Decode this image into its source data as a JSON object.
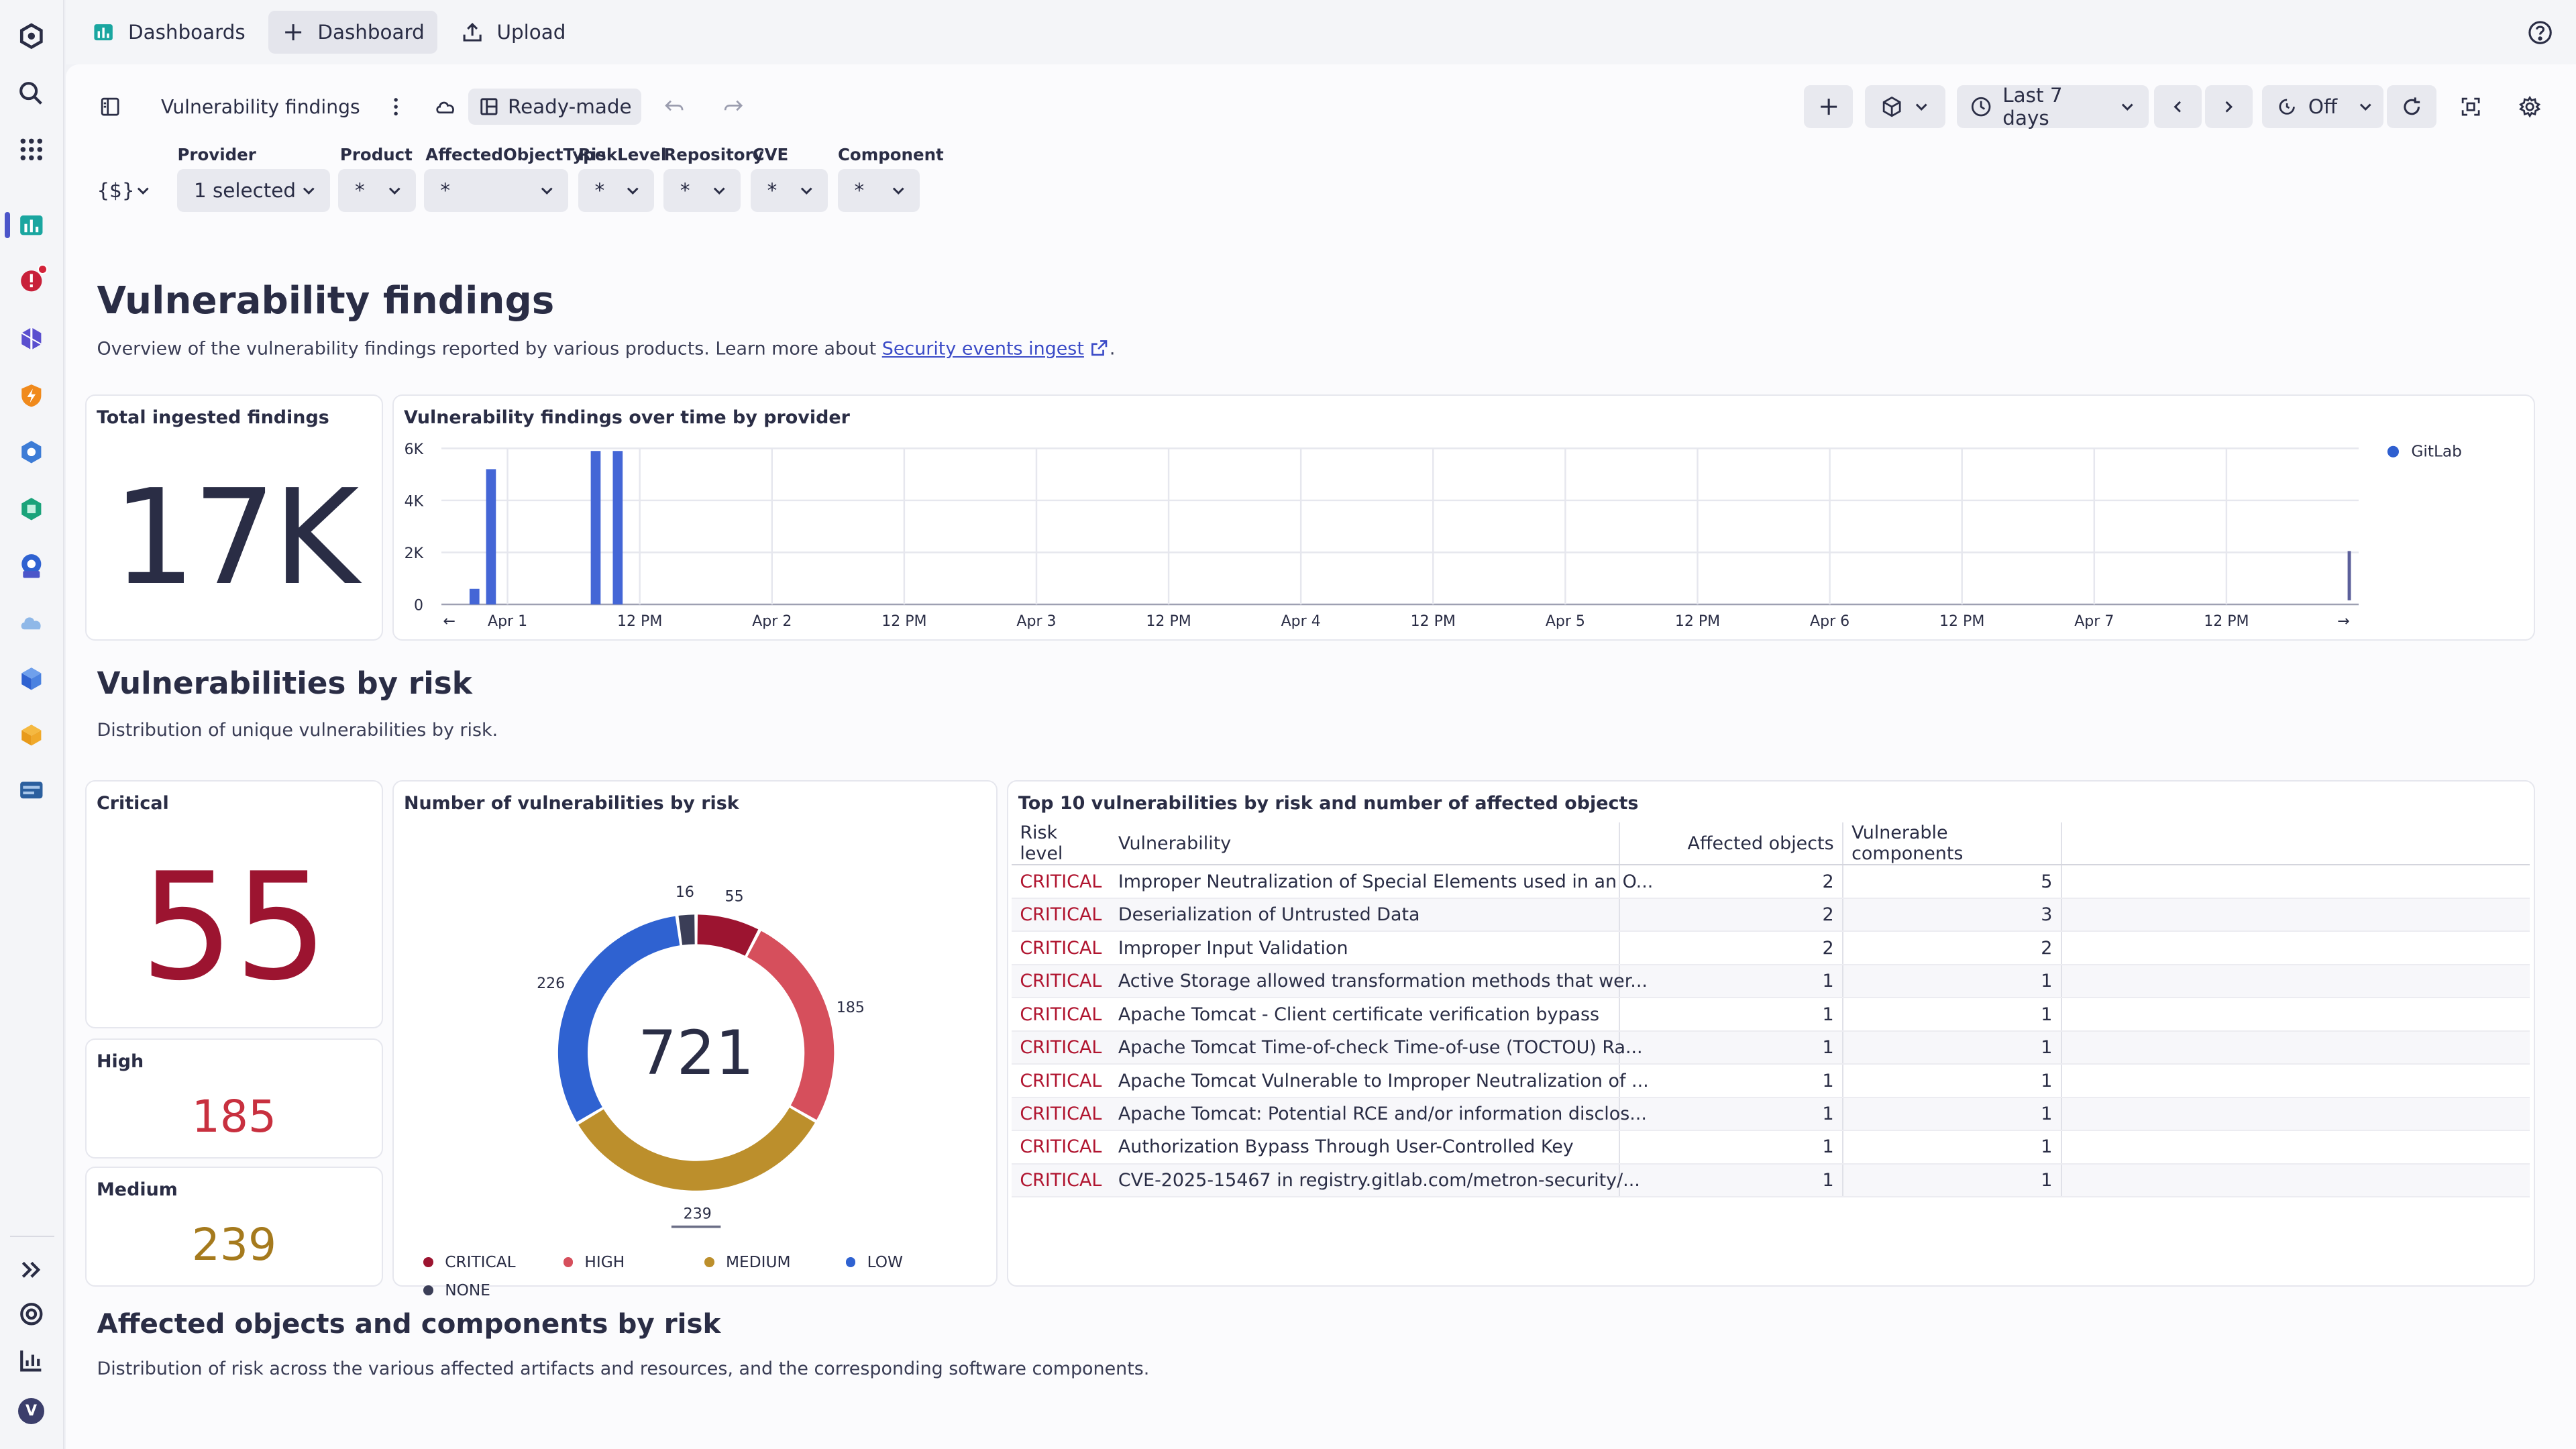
{
  "topbar": {
    "dashboards_label": "Dashboards",
    "new_dashboard_label": "Dashboard",
    "upload_label": "Upload"
  },
  "toolbar": {
    "dashboard_name": "Vulnerability findings",
    "readymade_label": "Ready-made",
    "timeframe_label": "Last 7 days",
    "refresh_label": "Off"
  },
  "filters": {
    "variable_label": "{$}",
    "items": [
      {
        "label": "Provider",
        "value": "1 selected"
      },
      {
        "label": "Product",
        "value": "*"
      },
      {
        "label": "AffectedObjectType",
        "value": "*"
      },
      {
        "label": "RiskLevel",
        "value": "*"
      },
      {
        "label": "Repository",
        "value": "*"
      },
      {
        "label": "CVE",
        "value": "*"
      },
      {
        "label": "Component",
        "value": "*"
      }
    ]
  },
  "section1": {
    "title": "Vulnerability findings",
    "description": "Overview of the vulnerability findings reported by various products. Learn more about",
    "link_text": "Security events ingest",
    "trailing": "."
  },
  "total_card": {
    "title": "Total ingested findings",
    "value": "17K"
  },
  "timeseries_card": {
    "title": "Vulnerability findings over time by provider"
  },
  "section2": {
    "title": "Vulnerabilities by risk",
    "description": "Distribution of unique vulnerabilities by risk."
  },
  "risk_cards": {
    "critical": {
      "title": "Critical",
      "value": "55"
    },
    "high": {
      "title": "High",
      "value": "185"
    },
    "medium": {
      "title": "Medium",
      "value": "239"
    }
  },
  "donut_card": {
    "title": "Number of vulnerabilities by risk",
    "total": "721"
  },
  "table_card": {
    "title": "Top 10 vulnerabilities by risk and number of affected objects",
    "columns": [
      "Risk level",
      "Vulnerability",
      "Affected objects",
      "Vulnerable components"
    ],
    "rows": [
      [
        "CRITICAL",
        "Improper Neutralization of Special Elements used in an O...",
        "2",
        "5"
      ],
      [
        "CRITICAL",
        "Deserialization of Untrusted Data",
        "2",
        "3"
      ],
      [
        "CRITICAL",
        "Improper Input Validation",
        "2",
        "2"
      ],
      [
        "CRITICAL",
        "Active Storage allowed transformation methods that wer...",
        "1",
        "1"
      ],
      [
        "CRITICAL",
        "Apache Tomcat - Client certificate verification bypass",
        "1",
        "1"
      ],
      [
        "CRITICAL",
        "Apache Tomcat Time-of-check Time-of-use (TOCTOU) Ra...",
        "1",
        "1"
      ],
      [
        "CRITICAL",
        "Apache Tomcat Vulnerable to Improper Neutralization of ...",
        "1",
        "1"
      ],
      [
        "CRITICAL",
        "Apache Tomcat: Potential RCE and/or information disclos...",
        "1",
        "1"
      ],
      [
        "CRITICAL",
        "Authorization Bypass Through User-Controlled Key",
        "1",
        "1"
      ],
      [
        "CRITICAL",
        "CVE-2025-15467 in registry.gitlab.com/metron-security/...",
        "1",
        "1"
      ]
    ]
  },
  "section3": {
    "title": "Affected objects and components by risk",
    "description": "Distribution of risk across the various affected artifacts and resources, and the corresponding software components."
  },
  "rail": {
    "avatar_letter": "V"
  },
  "colors": {
    "critical": "#9c1430",
    "high": "#d64f5c",
    "medium": "#bc8f2c",
    "low": "#2f62d1",
    "none": "#3b3e57",
    "bar": "#4466d6"
  },
  "chart_data": [
    {
      "type": "bar",
      "title": "Vulnerability findings over time by provider",
      "x_ticks": [
        "Apr 1",
        "12 PM",
        "Apr 2",
        "12 PM",
        "Apr 3",
        "12 PM",
        "Apr 4",
        "12 PM",
        "Apr 5",
        "12 PM",
        "Apr 6",
        "12 PM",
        "Apr 7",
        "12 PM"
      ],
      "y_ticks": [
        "6K",
        "4K",
        "2K",
        "0"
      ],
      "ylim": [
        0,
        6000
      ],
      "series": [
        {
          "name": "GitLab",
          "points": [
            {
              "x": "Mar 31 21:00",
              "y": 600
            },
            {
              "x": "Mar 31 22:30",
              "y": 5200
            },
            {
              "x": "Apr 1 08:00",
              "y": 5900
            },
            {
              "x": "Apr 1 10:00",
              "y": 5900
            },
            {
              "x": "Apr 7 23:00",
              "y": 1800
            }
          ]
        }
      ],
      "legend": "right"
    },
    {
      "type": "pie",
      "title": "Number of vulnerabilities by risk",
      "categories": [
        "CRITICAL",
        "HIGH",
        "MEDIUM",
        "LOW",
        "NONE"
      ],
      "values": [
        55,
        185,
        239,
        226,
        16
      ],
      "total": 721,
      "legend": "bottom"
    }
  ]
}
